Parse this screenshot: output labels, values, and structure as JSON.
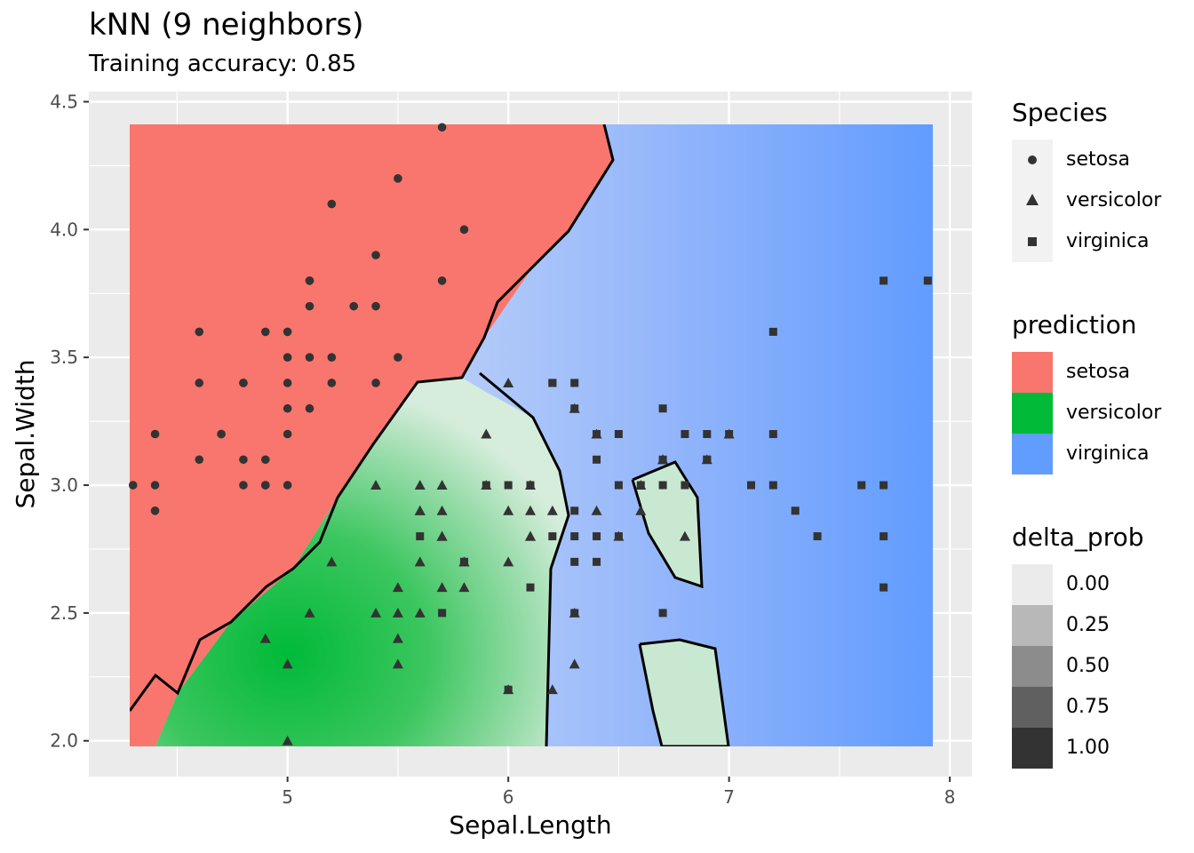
{
  "chart_data": {
    "type": "scatter",
    "title": "kNN (9 neighbors)",
    "subtitle": "Training accuracy: 0.85",
    "xlabel": "Sepal.Length",
    "ylabel": "Sepal.Width",
    "xlim": [
      4.1,
      8.1
    ],
    "ylim": [
      1.86,
      4.54
    ],
    "x_ticks": [
      "5",
      "6",
      "7",
      "8"
    ],
    "x_tick_values": [
      5,
      6,
      7,
      8
    ],
    "y_ticks": [
      "2.0",
      "2.5",
      "3.0",
      "3.5",
      "4.0",
      "4.5"
    ],
    "y_tick_values": [
      2.0,
      2.5,
      3.0,
      3.5,
      4.0,
      4.5
    ],
    "grid": true,
    "legend_position": "right",
    "colors": {
      "setosa": "#F8766D",
      "versicolor": "#00BA38",
      "virginica": "#619CFF",
      "panel": "#EBEBEB"
    },
    "legends": [
      {
        "title": "Species",
        "items": [
          "setosa",
          "versicolor",
          "virginica"
        ],
        "shapes": [
          "circle",
          "triangle",
          "square"
        ]
      },
      {
        "title": "prediction",
        "items": [
          "setosa",
          "versicolor",
          "virginica"
        ]
      },
      {
        "title": "delta_prob",
        "items": [
          "0.00",
          "0.25",
          "0.50",
          "0.75",
          "1.00"
        ]
      }
    ],
    "series": [
      {
        "name": "setosa",
        "shape": "circle",
        "points": [
          [
            5.1,
            3.5
          ],
          [
            4.9,
            3.0
          ],
          [
            4.7,
            3.2
          ],
          [
            4.6,
            3.1
          ],
          [
            5.0,
            3.6
          ],
          [
            5.4,
            3.9
          ],
          [
            4.6,
            3.4
          ],
          [
            5.0,
            3.4
          ],
          [
            4.4,
            2.9
          ],
          [
            4.9,
            3.1
          ],
          [
            5.4,
            3.7
          ],
          [
            4.8,
            3.4
          ],
          [
            4.8,
            3.0
          ],
          [
            4.3,
            3.0
          ],
          [
            5.8,
            4.0
          ],
          [
            5.7,
            4.4
          ],
          [
            5.1,
            3.8
          ],
          [
            5.7,
            3.8
          ],
          [
            5.4,
            3.4
          ],
          [
            5.1,
            3.7
          ],
          [
            4.6,
            3.6
          ],
          [
            5.1,
            3.3
          ],
          [
            4.8,
            3.4
          ],
          [
            5.0,
            3.0
          ],
          [
            5.2,
            3.5
          ],
          [
            5.2,
            3.4
          ],
          [
            4.7,
            3.2
          ],
          [
            4.8,
            3.1
          ],
          [
            5.2,
            4.1
          ],
          [
            5.5,
            4.2
          ],
          [
            5.5,
            3.5
          ],
          [
            4.9,
            3.6
          ],
          [
            4.4,
            3.0
          ],
          [
            5.0,
            3.5
          ],
          [
            4.4,
            3.2
          ],
          [
            5.1,
            3.8
          ],
          [
            5.3,
            3.7
          ],
          [
            5.0,
            3.3
          ],
          [
            4.9,
            3.0
          ],
          [
            5.0,
            3.2
          ]
        ]
      },
      {
        "name": "versicolor",
        "shape": "triangle",
        "points": [
          [
            7.0,
            3.2
          ],
          [
            6.4,
            3.2
          ],
          [
            6.9,
            3.1
          ],
          [
            5.5,
            2.3
          ],
          [
            6.5,
            2.8
          ],
          [
            5.7,
            2.8
          ],
          [
            6.3,
            3.3
          ],
          [
            4.9,
            2.4
          ],
          [
            6.6,
            2.9
          ],
          [
            5.2,
            2.7
          ],
          [
            5.0,
            2.0
          ],
          [
            5.9,
            3.0
          ],
          [
            6.0,
            2.2
          ],
          [
            6.1,
            2.9
          ],
          [
            5.6,
            2.9
          ],
          [
            6.7,
            3.1
          ],
          [
            5.6,
            3.0
          ],
          [
            5.8,
            2.7
          ],
          [
            6.2,
            2.2
          ],
          [
            5.6,
            2.5
          ],
          [
            6.1,
            2.8
          ],
          [
            6.3,
            2.5
          ],
          [
            6.1,
            2.8
          ],
          [
            6.4,
            2.9
          ],
          [
            6.6,
            3.0
          ],
          [
            6.8,
            2.8
          ],
          [
            6.0,
            2.9
          ],
          [
            5.7,
            2.6
          ],
          [
            5.5,
            2.4
          ],
          [
            5.8,
            2.7
          ],
          [
            6.0,
            2.7
          ],
          [
            5.4,
            3.0
          ],
          [
            6.0,
            3.4
          ],
          [
            6.7,
            3.1
          ],
          [
            6.3,
            2.3
          ],
          [
            5.5,
            2.5
          ],
          [
            5.5,
            2.6
          ],
          [
            6.1,
            3.0
          ],
          [
            5.8,
            2.6
          ],
          [
            5.0,
            2.3
          ],
          [
            5.6,
            2.7
          ],
          [
            5.7,
            3.0
          ],
          [
            5.7,
            2.9
          ],
          [
            6.2,
            2.9
          ],
          [
            5.1,
            2.5
          ],
          [
            5.7,
            2.8
          ],
          [
            5.9,
            3.2
          ],
          [
            5.6,
            2.9
          ],
          [
            5.4,
            2.5
          ]
        ]
      },
      {
        "name": "virginica",
        "shape": "square",
        "points": [
          [
            6.3,
            3.3
          ],
          [
            5.8,
            2.7
          ],
          [
            7.1,
            3.0
          ],
          [
            6.3,
            2.9
          ],
          [
            6.5,
            3.0
          ],
          [
            7.6,
            3.0
          ],
          [
            7.3,
            2.9
          ],
          [
            6.7,
            2.5
          ],
          [
            7.2,
            3.6
          ],
          [
            6.5,
            3.2
          ],
          [
            6.4,
            2.7
          ],
          [
            6.8,
            3.0
          ],
          [
            5.7,
            2.5
          ],
          [
            6.4,
            3.2
          ],
          [
            7.7,
            3.8
          ],
          [
            7.7,
            2.6
          ],
          [
            6.0,
            2.2
          ],
          [
            6.9,
            3.2
          ],
          [
            5.6,
            2.8
          ],
          [
            7.7,
            2.8
          ],
          [
            6.3,
            2.7
          ],
          [
            6.7,
            3.3
          ],
          [
            7.2,
            3.2
          ],
          [
            6.2,
            2.8
          ],
          [
            6.1,
            3.0
          ],
          [
            6.4,
            2.8
          ],
          [
            7.2,
            3.0
          ],
          [
            7.4,
            2.8
          ],
          [
            7.9,
            3.8
          ],
          [
            6.3,
            2.8
          ],
          [
            6.1,
            2.6
          ],
          [
            7.7,
            3.0
          ],
          [
            6.3,
            3.4
          ],
          [
            6.0,
            3.0
          ],
          [
            6.9,
            3.1
          ],
          [
            6.7,
            3.1
          ],
          [
            5.8,
            2.7
          ],
          [
            6.8,
            3.2
          ],
          [
            6.7,
            3.0
          ],
          [
            6.3,
            2.5
          ],
          [
            6.2,
            3.4
          ],
          [
            5.9,
            3.0
          ],
          [
            6.5,
            2.8
          ],
          [
            6.6,
            3.0
          ],
          [
            6.4,
            3.1
          ],
          [
            7.0,
            3.2
          ],
          [
            6.2,
            3.4
          ],
          [
            6.9,
            3.1
          ]
        ]
      }
    ]
  }
}
